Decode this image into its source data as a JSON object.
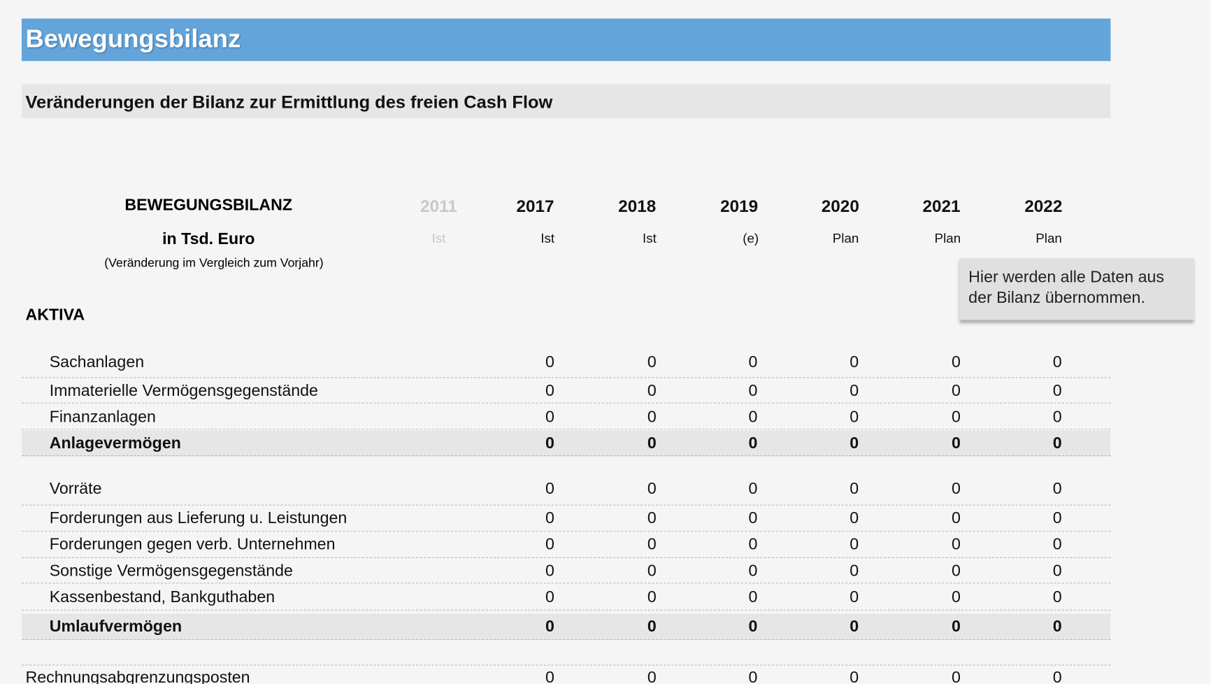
{
  "header": {
    "title": "Bewegungsbilanz",
    "subtitle": "Veränderungen der Bilanz zur Ermittlung des freien Cash Flow"
  },
  "table": {
    "heading": [
      "BEWEGUNGSBILANZ",
      "in Tsd. Euro",
      "(Veränderung im Vergleich zum Vorjahr)"
    ],
    "years": [
      "2011",
      "2017",
      "2018",
      "2019",
      "2020",
      "2021",
      "2022"
    ],
    "kinds": [
      "Ist",
      "Ist",
      "Ist",
      "(e)",
      "Plan",
      "Plan",
      "Plan"
    ],
    "note": "Hier werden alle Daten aus der Bilanz übernommen.",
    "section": "AKTIVA",
    "rows": [
      {
        "label": "Sachanlagen",
        "values": [
          0,
          0,
          0,
          0,
          0,
          0
        ],
        "bold": false
      },
      {
        "label": "Immaterielle Vermögensgegenstände",
        "values": [
          0,
          0,
          0,
          0,
          0,
          0
        ],
        "bold": false
      },
      {
        "label": "Finanzanlagen",
        "values": [
          0,
          0,
          0,
          0,
          0,
          0
        ],
        "bold": false
      },
      {
        "label": "Anlagevermögen",
        "values": [
          0,
          0,
          0,
          0,
          0,
          0
        ],
        "bold": true
      },
      {
        "label": "Vorräte",
        "values": [
          0,
          0,
          0,
          0,
          0,
          0
        ],
        "bold": false
      },
      {
        "label": "Forderungen aus Lieferung u. Leistungen",
        "values": [
          0,
          0,
          0,
          0,
          0,
          0
        ],
        "bold": false
      },
      {
        "label": "Forderungen gegen verb. Unternehmen",
        "values": [
          0,
          0,
          0,
          0,
          0,
          0
        ],
        "bold": false
      },
      {
        "label": "Sonstige Vermögensgegenstände",
        "values": [
          0,
          0,
          0,
          0,
          0,
          0
        ],
        "bold": false
      },
      {
        "label": "Kassenbestand, Bankguthaben",
        "values": [
          0,
          0,
          0,
          0,
          0,
          0
        ],
        "bold": false
      },
      {
        "label": "Umlaufvermögen",
        "values": [
          0,
          0,
          0,
          0,
          0,
          0
        ],
        "bold": true
      },
      {
        "label": "Rechnungsabgrenzungsposten",
        "values": [
          0,
          0,
          0,
          0,
          0,
          0
        ],
        "bold": false
      }
    ]
  }
}
